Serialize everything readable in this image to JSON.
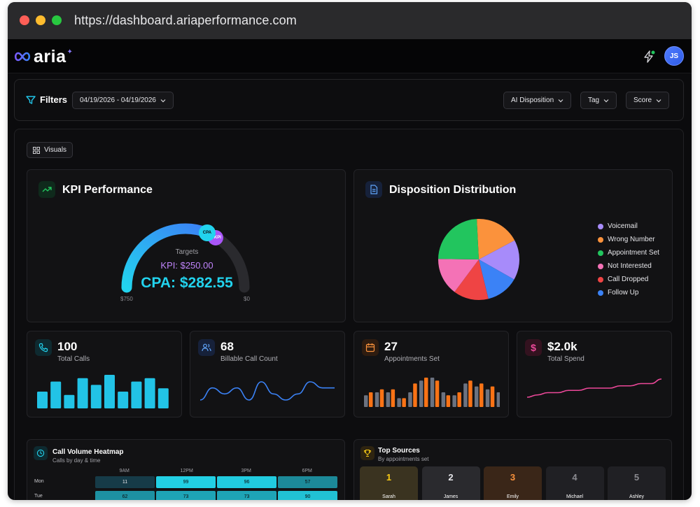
{
  "browser": {
    "url": "https://dashboard.ariaperformance.com"
  },
  "app": {
    "logo_text": "aria",
    "user_initials": "JS"
  },
  "filters": {
    "label": "Filters",
    "date_range": "04/19/2026 - 04/19/2026",
    "ai_disposition": "AI Disposition",
    "tag": "Tag",
    "score": "Score"
  },
  "visuals_button": "Visuals",
  "kpi": {
    "title": "KPI Performance",
    "targets_label": "Targets",
    "kpi_text": "KPI: $250.00",
    "cpa_text": "CPA: $282.55",
    "min_label": "$750",
    "max_label": "$0",
    "cpa_badge": "CPA",
    "kpi_badge": "KPI",
    "gauge_fraction": 0.62
  },
  "disposition": {
    "title": "Disposition Distribution",
    "legend": [
      {
        "label": "Voicemail",
        "color": "#a78bfa"
      },
      {
        "label": "Wrong Number",
        "color": "#fb923c"
      },
      {
        "label": "Appointment Set",
        "color": "#22c55e"
      },
      {
        "label": "Not Interested",
        "color": "#f472b6"
      },
      {
        "label": "Call Dropped",
        "color": "#ef4444"
      },
      {
        "label": "Follow Up",
        "color": "#3b82f6"
      }
    ]
  },
  "stats": {
    "total_calls": {
      "value": "100",
      "label": "Total Calls"
    },
    "billable": {
      "value": "68",
      "label": "Billable Call Count"
    },
    "appointments": {
      "value": "27",
      "label": "Appointments Set"
    },
    "spend": {
      "value": "$2.0k",
      "label": "Total Spend"
    }
  },
  "heatmap": {
    "title": "Call Volume Heatmap",
    "subtitle": "Calls by day & time",
    "columns": [
      "9AM",
      "12PM",
      "3PM",
      "6PM"
    ],
    "rows": [
      {
        "day": "Mon",
        "values": [
          "11",
          "99",
          "96",
          "57"
        ]
      },
      {
        "day": "Tue",
        "values": [
          "62",
          "73",
          "73",
          "90"
        ]
      }
    ]
  },
  "top_sources": {
    "title": "Top Sources",
    "subtitle": "By appointments set",
    "items": [
      {
        "rank": "1",
        "name": "Sarah"
      },
      {
        "rank": "2",
        "name": "James"
      },
      {
        "rank": "3",
        "name": "Emily"
      },
      {
        "rank": "4",
        "name": "Michael"
      },
      {
        "rank": "5",
        "name": "Ashley"
      }
    ]
  },
  "chart_data": [
    {
      "type": "pie",
      "title": "Disposition Distribution",
      "categories": [
        "Voicemail",
        "Wrong Number",
        "Appointment Set",
        "Not Interested",
        "Call Dropped",
        "Follow Up"
      ],
      "values": [
        16,
        18,
        24,
        15,
        14,
        13
      ],
      "legend": "right"
    },
    {
      "type": "bar",
      "title": "Total Calls",
      "values": [
        5,
        8,
        4,
        9,
        7,
        10,
        5,
        8,
        9,
        6
      ]
    },
    {
      "type": "line",
      "title": "Billable Call Count",
      "values": [
        3,
        5,
        4,
        5,
        3,
        6,
        4,
        3,
        4,
        6,
        5,
        5
      ]
    },
    {
      "type": "bar",
      "title": "Appointments Set",
      "series": [
        {
          "values": [
            4,
            5,
            5,
            3,
            5,
            9,
            10,
            5,
            4,
            8,
            7,
            6,
            5
          ]
        },
        {
          "values": [
            5,
            6,
            6,
            3,
            8,
            10,
            9,
            4,
            5,
            9,
            8,
            7,
            6
          ]
        }
      ]
    },
    {
      "type": "line",
      "title": "Total Spend",
      "values": [
        2,
        3,
        4,
        4,
        5,
        5,
        6,
        6,
        6,
        7,
        7,
        8,
        8,
        10
      ]
    }
  ],
  "colors": {
    "accent": "#22c3e6",
    "orange": "#f97316",
    "gray_bar": "#6b7280",
    "purple_text": "#c084fc",
    "spend_line": "#ec4899",
    "billable_line": "#3b82f6"
  }
}
